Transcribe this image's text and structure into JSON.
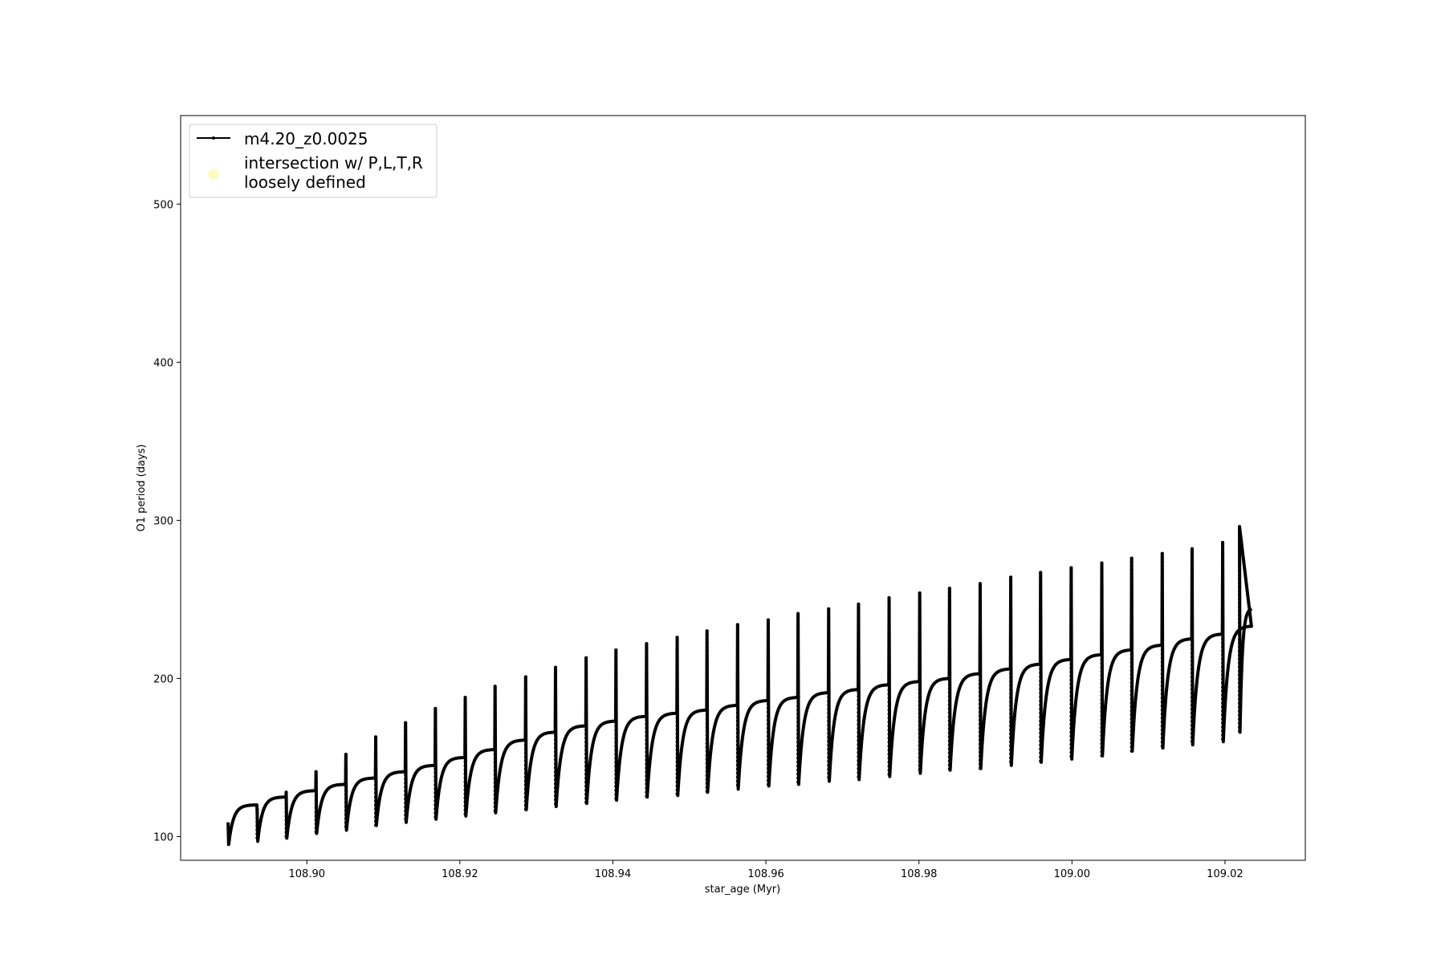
{
  "chart_data": {
    "type": "line",
    "xlabel": "star_age (Myr)",
    "ylabel": "O1 period (days)",
    "xlim": [
      108.8835,
      109.0305
    ],
    "ylim": [
      85,
      556
    ],
    "x_ticks": [
      "108.90",
      "108.92",
      "108.94",
      "108.96",
      "108.98",
      "109.00",
      "109.02"
    ],
    "x_tick_values": [
      108.9,
      108.92,
      108.94,
      108.96,
      108.98,
      109.0,
      109.02
    ],
    "y_ticks": [
      "100",
      "200",
      "300",
      "400",
      "500"
    ],
    "y_tick_values": [
      100,
      200,
      300,
      400,
      500
    ],
    "grid": false,
    "legend_position": "upper-left",
    "legend": [
      {
        "label": "m4.20_z0.0025",
        "marker": "line-dot",
        "color": "#000000"
      },
      {
        "label_lines": [
          "intersection w/ P,L,T,R",
          "loosely defined"
        ],
        "marker": "circle",
        "color": "#fbfbc4"
      }
    ],
    "series": [
      {
        "name": "m4.20_z0.0025",
        "color": "#000000",
        "cycle_starts": [
          108.8897,
          108.8935,
          108.8973,
          108.9012,
          108.9051,
          108.909,
          108.9129,
          108.9168,
          108.9207,
          108.9246,
          108.9286,
          108.9325,
          108.9365,
          108.9404,
          108.9444,
          108.9484,
          108.9523,
          108.9563,
          108.9603,
          108.9642,
          108.9682,
          108.9721,
          108.9761,
          108.9801,
          108.984,
          108.988,
          108.992,
          108.9959,
          108.9999,
          109.0039,
          109.0078,
          109.0118,
          109.0157,
          109.0197
        ],
        "spike_max": [
          null,
          117,
          128,
          141,
          152,
          163,
          172,
          181,
          188,
          195,
          201,
          207,
          213,
          218,
          222,
          226,
          230,
          234,
          237,
          241,
          244,
          247,
          251,
          254,
          257,
          260,
          264,
          267,
          270,
          273,
          276,
          279,
          282,
          286
        ],
        "dip_min": [
          95,
          97,
          99,
          102,
          104,
          107,
          109,
          111,
          113,
          115,
          117,
          119,
          121,
          123,
          125,
          126,
          128,
          130,
          132,
          133,
          135,
          136,
          138,
          140,
          142,
          143,
          145,
          147,
          149,
          151,
          154,
          156,
          158,
          160
        ],
        "plateau": [
          120,
          125,
          129,
          133,
          137,
          141,
          145,
          150,
          155,
          161,
          166,
          170,
          173,
          176,
          178,
          180,
          183,
          186,
          188,
          191,
          193,
          196,
          198,
          200,
          203,
          206,
          209,
          212,
          215,
          218,
          221,
          225,
          228,
          233
        ],
        "extra_spike": {
          "x": 109.0219,
          "max": 296,
          "min": 166
        },
        "end": {
          "x": 109.0235,
          "y": 244
        }
      }
    ]
  }
}
